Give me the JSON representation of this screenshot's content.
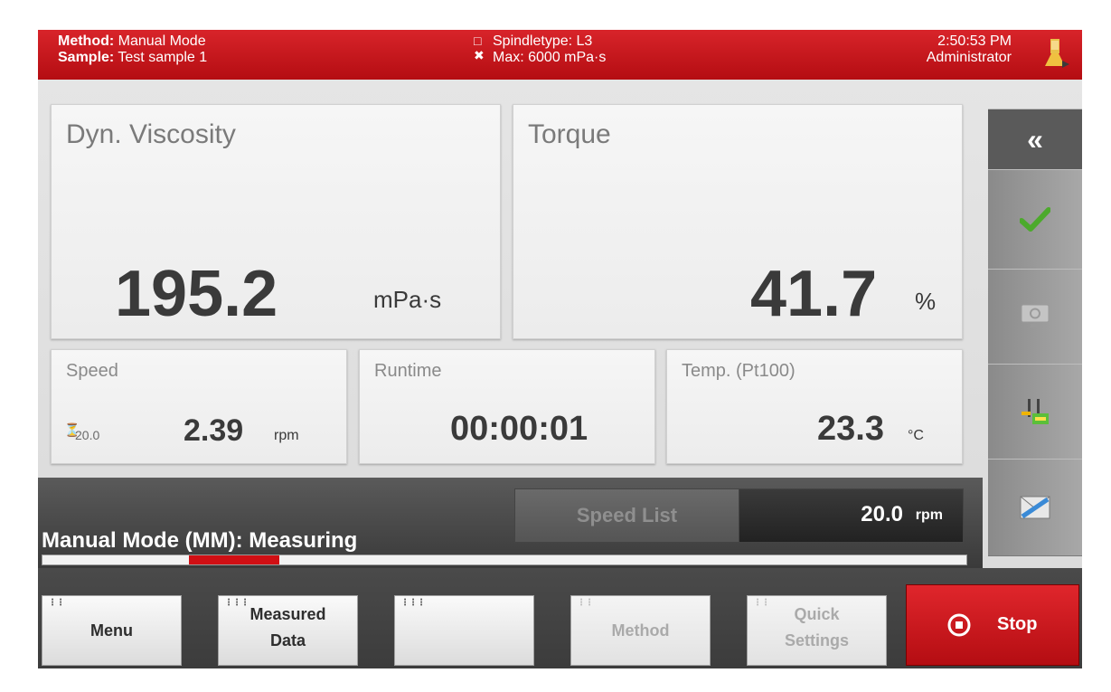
{
  "header": {
    "method_label": "Method:",
    "method_value": "Manual Mode",
    "sample_label": "Sample:",
    "sample_value": "Test sample 1",
    "spindle": "Spindletype: L3",
    "max": "Max: 6000 mPa·s",
    "time": "2:50:53 PM",
    "user": "Administrator"
  },
  "viscosity": {
    "title": "Dyn. Viscosity",
    "value": "195.2",
    "unit": "mPa·s"
  },
  "torque": {
    "title": "Torque",
    "value": "41.7",
    "unit": "%"
  },
  "speed": {
    "title": "Speed",
    "setpoint": "20.0",
    "value": "2.39",
    "unit": "rpm"
  },
  "runtime": {
    "title": "Runtime",
    "value": "00:00:01"
  },
  "temperature": {
    "title": "Temp. (Pt100)",
    "value": "23.3",
    "unit": "°C"
  },
  "status": {
    "text": "Manual Mode (MM): Measuring",
    "speed_list_label": "Speed List",
    "speed_value": "20.0",
    "speed_unit": "rpm"
  },
  "sidebar": {
    "collapse_label": "«"
  },
  "bottom": {
    "menu_label": "Menu",
    "measured_line1": "Measured",
    "measured_line2": "Data",
    "empty_label": "",
    "method_label": "Method",
    "quick_line1": "Quick",
    "quick_line2": "Settings",
    "stop_label": "Stop"
  },
  "colors": {
    "accent_red": "#c8141a",
    "check_green": "#4caa2c"
  },
  "icons": [
    "user-icon",
    "spindle-icon",
    "collapse-icon",
    "check-icon",
    "monitor-icon",
    "probe-icon",
    "demo-icon",
    "stop-icon",
    "speed-icon"
  ]
}
